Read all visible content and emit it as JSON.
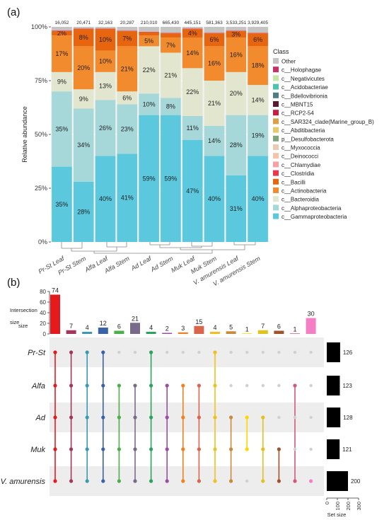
{
  "panel_a": {
    "label": "(a)",
    "chart_data": {
      "type": "bar",
      "stacked": true,
      "normalized": true,
      "ylabel": "Relative abundance",
      "ylim": [
        0,
        100
      ],
      "ytick_labels": [
        "0%",
        "25%",
        "50%",
        "75%",
        "100%"
      ],
      "ytick_values": [
        0,
        25,
        50,
        75,
        100
      ],
      "categories": [
        "Pr-St Leaf",
        "Pr-St Stem",
        "Alfa Leaf",
        "Alfa Stem",
        "Ad Leaf",
        "Ad Stem",
        "Muk Leaf",
        "Muk Stem",
        "V. amurensis Leaf",
        "V. amurensis Stem"
      ],
      "totals": [
        "16,052",
        "20,471",
        "32,163",
        "20,287",
        "210,010",
        "665,430",
        "445,151",
        "581,363",
        "3,533,251",
        "3,929,405"
      ],
      "legend_title": "Class",
      "legend_position": "right",
      "series": [
        {
          "name": "c__Gammaproteobacteria",
          "color": "#5bc8dd",
          "values": [
            35,
            28,
            40,
            41,
            59,
            59,
            47,
            40,
            31,
            40
          ],
          "labels": [
            "35%",
            "28%",
            "40%",
            "41%",
            "59%",
            "59%",
            "47%",
            "40%",
            "31%",
            "40%"
          ]
        },
        {
          "name": "c__Alphaproteobacteria",
          "color": "#a6d8d9",
          "values": [
            35,
            34,
            26,
            23,
            10,
            8,
            11,
            14,
            28,
            19
          ],
          "labels": [
            "35%",
            "34%",
            "26%",
            "23%",
            "10%",
            "8%",
            "11%",
            "14%",
            "28%",
            "19%"
          ]
        },
        {
          "name": "c__Bacteroidia",
          "color": "#e2e6cf",
          "values": [
            9,
            9,
            13,
            6,
            22,
            21,
            22,
            21,
            20,
            14
          ],
          "labels": [
            "9%",
            "9%",
            "13%",
            "6%",
            "22%",
            "21%",
            "22%",
            "21%",
            "20%",
            "14%"
          ]
        },
        {
          "name": "c__Actinobacteria",
          "color": "#f28a2e",
          "values": [
            17,
            20,
            10,
            21,
            5,
            7,
            14,
            16,
            16,
            18
          ],
          "labels": [
            "17%",
            "20%",
            "10%",
            "21%",
            "5%",
            "7%",
            "14%",
            "16%",
            "16%",
            "18%"
          ]
        },
        {
          "name": "c__Bacilli",
          "color": "#e8650f",
          "values": [
            2,
            8,
            10,
            7,
            1.5,
            2,
            4,
            6,
            3,
            6
          ],
          "labels": [
            "2%",
            "8%",
            "10%",
            "7%",
            "",
            "",
            "4%",
            "6%",
            "3%",
            "6%"
          ]
        },
        {
          "name": "c__Clostridia",
          "color": "#e8374e",
          "values": [
            0.3,
            0.2,
            0.2,
            0.2,
            0.2,
            0.2,
            0.2,
            0.2,
            0.2,
            0.2
          ],
          "labels": [
            "",
            "",
            "",
            "",
            "",
            "",
            "",
            "",
            "",
            ""
          ]
        },
        {
          "name": "c__Chlamydiae",
          "color": "#f6a0a8",
          "values": [
            0,
            0,
            0,
            0,
            0,
            0,
            0,
            0,
            0,
            0
          ],
          "labels": [
            "",
            "",
            "",
            "",
            "",
            "",
            "",
            "",
            "",
            ""
          ]
        },
        {
          "name": "c__Deinococci",
          "color": "#f4c3a8",
          "values": [
            0,
            0,
            0,
            0,
            0,
            0,
            0,
            0,
            0,
            0
          ],
          "labels": [
            "",
            "",
            "",
            "",
            "",
            "",
            "",
            "",
            "",
            ""
          ]
        },
        {
          "name": "c__Myxococcia",
          "color": "#e9c9b7",
          "values": [
            0,
            0,
            0,
            0,
            0,
            0,
            0,
            0,
            0,
            0
          ],
          "labels": [
            "",
            "",
            "",
            "",
            "",
            "",
            "",
            "",
            "",
            ""
          ]
        },
        {
          "name": "p__Desulfobacterota",
          "color": "#7fa37c",
          "values": [
            0,
            0,
            0,
            0,
            0,
            0,
            0,
            0,
            0,
            0
          ],
          "labels": [
            "",
            "",
            "",
            "",
            "",
            "",
            "",
            "",
            "",
            ""
          ]
        },
        {
          "name": "c__Abditibacteria",
          "color": "#e6c86f",
          "values": [
            0,
            0,
            0,
            0,
            0,
            0,
            0,
            0,
            0,
            0
          ],
          "labels": [
            "",
            "",
            "",
            "",
            "",
            "",
            "",
            "",
            "",
            ""
          ]
        },
        {
          "name": "c__SAR324_clade(Marine_group_B)",
          "color": "#d9a04a",
          "values": [
            0,
            0,
            0,
            0,
            0,
            0,
            0,
            0,
            0,
            0
          ],
          "labels": [
            "",
            "",
            "",
            "",
            "",
            "",
            "",
            "",
            "",
            ""
          ]
        },
        {
          "name": "c__RCP2-54",
          "color": "#c51f3f",
          "values": [
            0,
            0,
            0,
            0,
            0,
            0,
            0,
            0,
            0,
            0
          ],
          "labels": [
            "",
            "",
            "",
            "",
            "",
            "",
            "",
            "",
            "",
            ""
          ]
        },
        {
          "name": "c__MBNT15",
          "color": "#5b1a33",
          "values": [
            0,
            0,
            0,
            0,
            0,
            0,
            0,
            0,
            0,
            0
          ],
          "labels": [
            "",
            "",
            "",
            "",
            "",
            "",
            "",
            "",
            "",
            ""
          ]
        },
        {
          "name": "c__Bdellovibrionia",
          "color": "#4e7e84",
          "values": [
            0,
            0,
            0,
            0,
            0,
            0,
            0,
            0,
            0,
            0
          ],
          "labels": [
            "",
            "",
            "",
            "",
            "",
            "",
            "",
            "",
            "",
            ""
          ]
        },
        {
          "name": "c__Acidobacteriae",
          "color": "#4fc2b0",
          "values": [
            0,
            0,
            0,
            0,
            0,
            0,
            0,
            0,
            0,
            0
          ],
          "labels": [
            "",
            "",
            "",
            "",
            "",
            "",
            "",
            "",
            "",
            ""
          ]
        },
        {
          "name": "c__Negativicutes",
          "color": "#c6e6a1",
          "values": [
            0,
            0,
            0,
            0,
            0,
            0,
            0,
            0,
            0,
            0
          ],
          "labels": [
            "",
            "",
            "",
            "",
            "",
            "",
            "",
            "",
            "",
            ""
          ]
        },
        {
          "name": "c__Holophagae",
          "color": "#c23465",
          "values": [
            0,
            0,
            0,
            0,
            0,
            0,
            0,
            0,
            0,
            0
          ],
          "labels": [
            "",
            "",
            "",
            "",
            "",
            "",
            "",
            "",
            "",
            ""
          ]
        },
        {
          "name": "Other",
          "color": "#c4c4c4",
          "values": [
            1.7,
            0.8,
            0.8,
            1.8,
            2.3,
            2.8,
            0.8,
            2.8,
            1.8,
            2.8
          ],
          "labels": [
            "",
            "",
            "",
            "",
            "",
            "",
            "",
            "",
            "",
            ""
          ]
        }
      ],
      "legend_order": [
        "Other",
        "c__Holophagae",
        "c__Negativicutes",
        "c__Acidobacteriae",
        "c__Bdellovibrionia",
        "c__MBNT15",
        "c__RCP2-54",
        "c__SAR324_clade(Marine_group_B)",
        "c__Abditibacteria",
        "p__Desulfobacterota",
        "c__Myxococcia",
        "c__Deinococci",
        "c__Chlamydiae",
        "c__Clostridia",
        "c__Bacilli",
        "c__Actinobacteria",
        "c__Bacteroidia",
        "c__Alphaproteobacteria",
        "c__Gammaproteobacteria"
      ],
      "dendrogram": "hierarchical clustering tree below bars"
    }
  },
  "panel_b": {
    "label": "(b)",
    "chart_data": {
      "type": "upset",
      "intersection_axis_label": "Intersection size",
      "intersection_ylim": [
        0,
        80
      ],
      "intersection_ticks": [
        "0",
        "20",
        "40",
        "60",
        "80"
      ],
      "intersection_tick_values": [
        0,
        20,
        40,
        60,
        80
      ],
      "sets": [
        "Pr-St",
        "Alfa",
        "Ad",
        "Muk",
        "V. amurensis"
      ],
      "set_sizes": [
        126,
        123,
        128,
        121,
        200
      ],
      "set_size_axis_label": "Set size",
      "set_size_ticks": [
        "0",
        "100",
        "200",
        "300"
      ],
      "set_size_tick_values": [
        0,
        100,
        200,
        300
      ],
      "intersections": [
        {
          "size": 74,
          "members": [
            1,
            1,
            1,
            1,
            1
          ],
          "color": "#e41a1c"
        },
        {
          "size": 7,
          "members": [
            1,
            1,
            1,
            1,
            1
          ],
          "color": "#a3365b"
        },
        {
          "size": 4,
          "members": [
            1,
            1,
            1,
            1,
            1
          ],
          "color": "#3b9ab2"
        },
        {
          "size": 12,
          "members": [
            1,
            1,
            1,
            1,
            1
          ],
          "color": "#3a62a8"
        },
        {
          "size": 6,
          "members": [
            0,
            1,
            1,
            1,
            1
          ],
          "color": "#4daf4a"
        },
        {
          "size": 21,
          "members": [
            0,
            1,
            1,
            1,
            1
          ],
          "color": "#7a6a8a"
        },
        {
          "size": 4,
          "members": [
            1,
            1,
            1,
            1,
            1
          ],
          "color": "#2ca25f"
        },
        {
          "size": 2,
          "members": [
            0,
            1,
            1,
            1,
            1
          ],
          "color": "#984ea3"
        },
        {
          "size": 3,
          "members": [
            0,
            1,
            1,
            1,
            1
          ],
          "color": "#f08020"
        },
        {
          "size": 15,
          "members": [
            0,
            1,
            1,
            1,
            1
          ],
          "color": "#d9654b"
        },
        {
          "size": 4,
          "members": [
            1,
            1,
            1,
            1,
            1
          ],
          "color": "#f0c020"
        },
        {
          "size": 5,
          "members": [
            0,
            0,
            1,
            1,
            1
          ],
          "color": "#c98a3e"
        },
        {
          "size": 1,
          "members": [
            0,
            0,
            1,
            1,
            0
          ],
          "color": "#ffd700"
        },
        {
          "size": 7,
          "members": [
            0,
            0,
            1,
            1,
            1
          ],
          "color": "#e2c21e"
        },
        {
          "size": 6,
          "members": [
            0,
            0,
            0,
            1,
            1
          ],
          "color": "#a0522d"
        },
        {
          "size": 1,
          "members": [
            0,
            1,
            0,
            0,
            1
          ],
          "color": "#d4577a"
        },
        {
          "size": 30,
          "members": [
            0,
            0,
            0,
            0,
            1
          ],
          "color": "#f47fc4"
        }
      ]
    }
  },
  "colors": {
    "inactive_dot": "#d0d0d0",
    "band": "#ededed",
    "set_bar": "#000000"
  }
}
